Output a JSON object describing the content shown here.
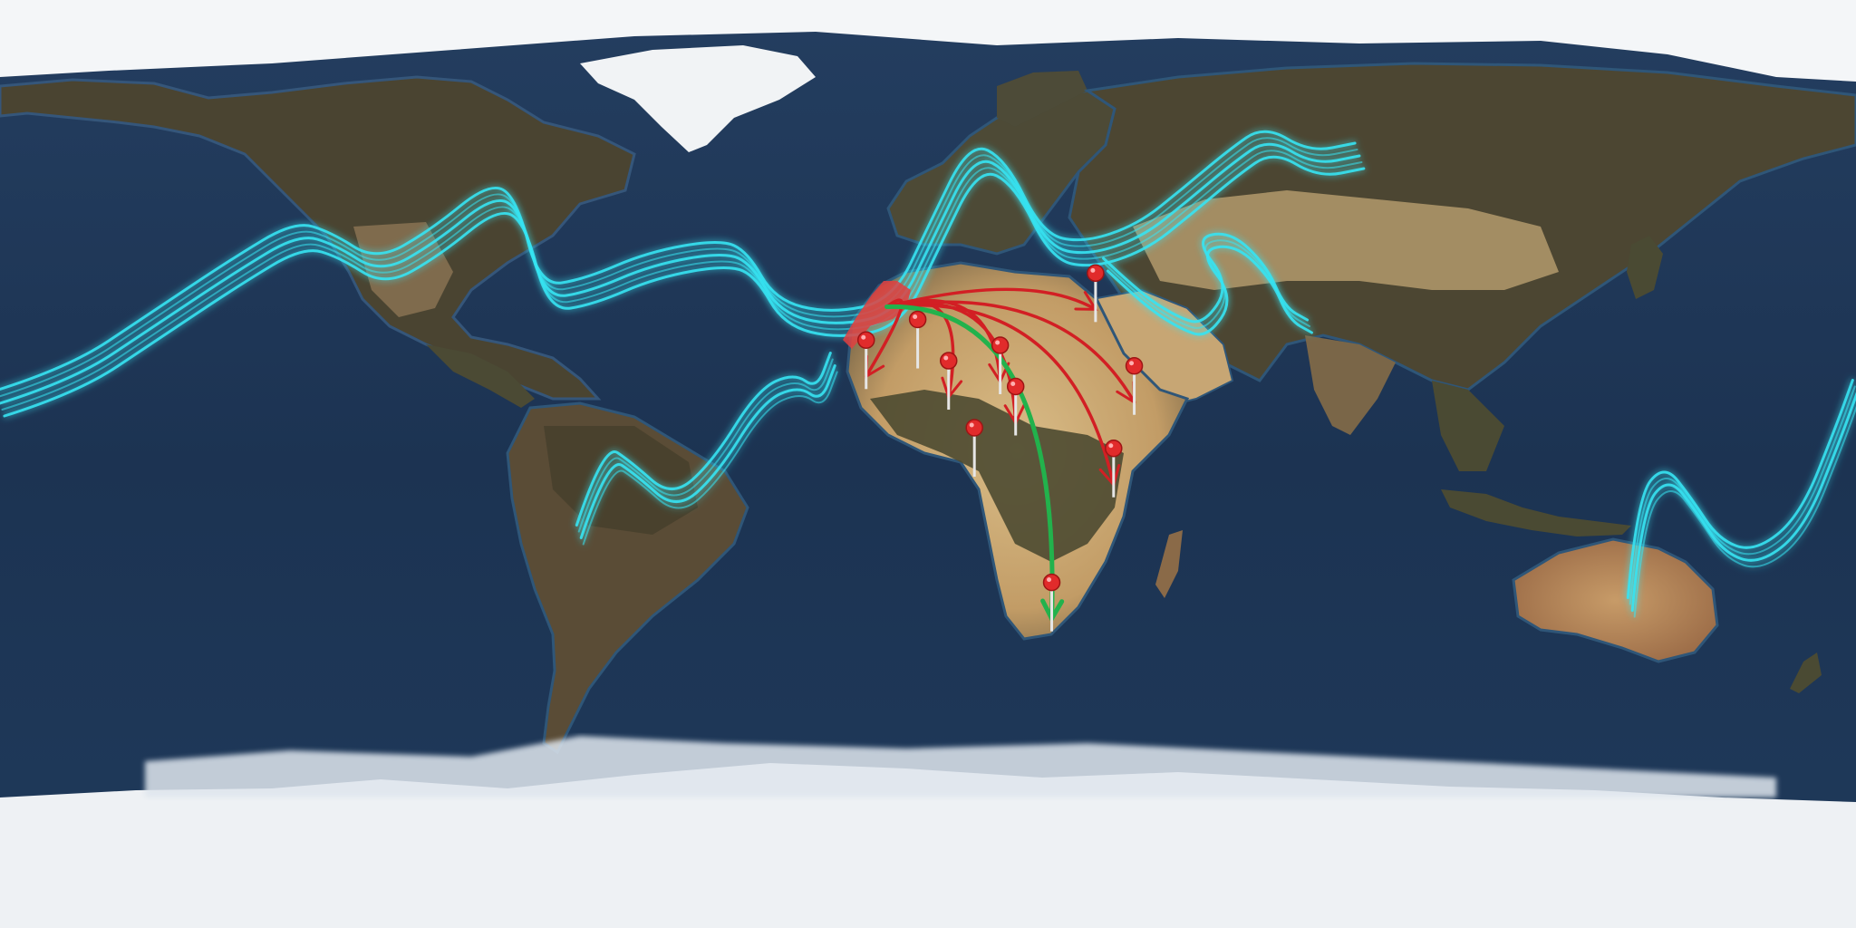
{
  "map": {
    "projection": "equirectangular",
    "basemap": "satellite-blue-marble",
    "colors": {
      "ocean": "#1d3555",
      "ocean_shallow": "#2b5a78",
      "land_forest": "#4a4a32",
      "land_desert": "#c9a873",
      "land_dry": "#8a7150",
      "ice": "#f2f4f6",
      "jet_stream": "#36e3f2",
      "route_red": "#d21f24",
      "route_green": "#22b24c",
      "pin_red": "#e12b2b",
      "pin_stem": "#e6e6e6",
      "origin_area": "#e04040"
    }
  },
  "layers": {
    "jet_streams": [
      {
        "id": "north-hemisphere-jet",
        "lanes": 5,
        "color": "jet_stream"
      },
      {
        "id": "tropical-atlantic-jet",
        "lanes": 4,
        "color": "jet_stream"
      },
      {
        "id": "southwest-asia-jet",
        "lanes": 3,
        "color": "jet_stream"
      },
      {
        "id": "south-pacific-jet",
        "lanes": 4,
        "color": "jet_stream"
      }
    ],
    "origin_region": {
      "name": "northwest-africa",
      "lat": 30.5,
      "lon": -8
    },
    "destinations": [
      {
        "name": "lower-egypt",
        "lat": 30,
        "lon": 32.5
      },
      {
        "name": "mauritania",
        "lat": 17,
        "lon": -12
      },
      {
        "name": "mali",
        "lat": 21,
        "lon": -2
      },
      {
        "name": "niger",
        "lat": 13,
        "lon": 4
      },
      {
        "name": "chad",
        "lat": 16,
        "lon": 14
      },
      {
        "name": "central-african-republic",
        "lat": 8,
        "lon": 17
      },
      {
        "name": "south-sudan",
        "lat": 0,
        "lon": 9
      },
      {
        "name": "ethiopia",
        "lat": 12,
        "lon": 40
      },
      {
        "name": "kenya",
        "lat": -4,
        "lon": 36
      },
      {
        "name": "south-africa",
        "lat": -30,
        "lon": 24
      }
    ],
    "routes": [
      {
        "from": "origin",
        "to": "mauritania",
        "color": "route_red"
      },
      {
        "from": "origin",
        "to": "niger",
        "color": "route_red"
      },
      {
        "from": "origin",
        "to": "chad",
        "color": "route_red"
      },
      {
        "from": "origin",
        "to": "central-african-republic",
        "color": "route_red"
      },
      {
        "from": "origin",
        "to": "kenya",
        "color": "route_red"
      },
      {
        "from": "origin",
        "to": "ethiopia",
        "color": "route_red"
      },
      {
        "from": "origin",
        "to": "lower-egypt",
        "color": "route_red"
      },
      {
        "from": "origin",
        "to": "south-africa",
        "color": "route_green"
      }
    ]
  }
}
